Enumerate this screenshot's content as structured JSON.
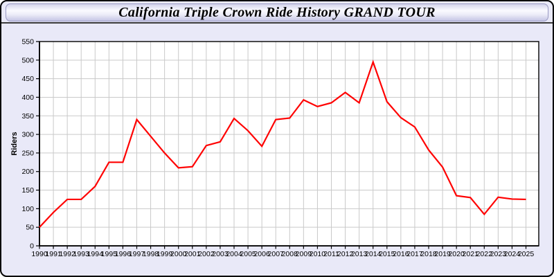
{
  "window": {
    "title": "California Triple Crown Ride History GRAND TOUR"
  },
  "chart_data": {
    "type": "line",
    "title": "California Triple Crown Ride History GRAND TOUR",
    "xlabel": "",
    "ylabel": "Riders",
    "x": [
      1990,
      1991,
      1992,
      1993,
      1994,
      1995,
      1996,
      1997,
      1998,
      1999,
      2000,
      2001,
      2002,
      2003,
      2004,
      2005,
      2006,
      2007,
      2008,
      2009,
      2010,
      2011,
      2012,
      2013,
      2014,
      2015,
      2016,
      2017,
      2018,
      2019,
      2020,
      2021,
      2022,
      2023,
      2024,
      2025
    ],
    "series": [
      {
        "name": "Riders",
        "color": "#ff0000",
        "values": [
          50,
          90,
          125,
          125,
          160,
          225,
          225,
          340,
          295,
          250,
          210,
          213,
          270,
          280,
          343,
          310,
          268,
          340,
          344,
          393,
          375,
          385,
          413,
          385,
          495,
          388,
          345,
          320,
          258,
          212,
          135,
          130,
          85,
          131,
          126,
          125
        ]
      }
    ],
    "ylim": [
      0,
      550
    ],
    "ytick_step": 50,
    "grid": true,
    "legend_position": "none",
    "plot_bg": "#ffffff",
    "page_bg": "#e9e9f8",
    "grid_color": "#c9c9c9",
    "axis_color": "#000000"
  }
}
